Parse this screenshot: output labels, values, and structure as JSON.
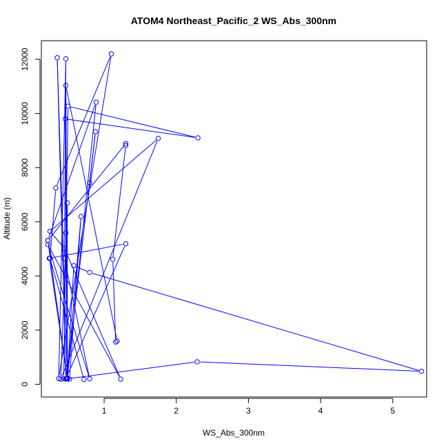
{
  "chart_data": {
    "type": "line",
    "title": "ATOM4 Northeast_Pacific_2 WS_Abs_300nm",
    "xlabel": "WS_Abs_300nm",
    "ylabel": "Altitude (m)",
    "xlim": [
      0.13,
      5.47
    ],
    "ylim": [
      -470,
      12690
    ],
    "xticks": [
      1,
      2,
      3,
      4,
      5
    ],
    "yticks": [
      0,
      2000,
      4000,
      6000,
      8000,
      10000,
      12000
    ],
    "grid": false,
    "legend": "none",
    "color": "#0000ff",
    "series": [
      {
        "x": [
          0.72,
          0.25,
          0.33,
          1.1,
          0.37,
          0.47,
          0.45,
          0.8,
          0.22,
          1.23,
          0.45,
          0.25,
          1.75,
          0.4,
          0.49,
          0.49,
          0.89,
          0.22,
          0.49,
          0.22,
          1.3,
          1.3,
          1.12,
          1.16,
          1.18,
          0.47,
          0.49,
          0.35,
          0.47,
          1.3,
          0.24,
          0.49,
          0.47,
          0.46,
          2.3,
          0.5,
          0.44,
          0.52,
          0.68,
          0.49,
          0.58,
          0.8,
          5.4,
          2.29,
          0.48,
          0.88,
          0.8
        ],
        "y": [
          180,
          4660,
          7250,
          12200,
          210,
          12020,
          4640,
          200,
          5160,
          190,
          5020,
          5650,
          9080,
          190,
          6700,
          200,
          10420,
          5310,
          200,
          5310,
          8890,
          8820,
          4620,
          1560,
          1600,
          11040,
          200,
          12060,
          200,
          5190,
          4650,
          220,
          5590,
          9800,
          9100,
          10270,
          200,
          190,
          6200,
          230,
          4380,
          4130,
          480,
          830,
          200,
          9330,
          7440
        ]
      }
    ]
  }
}
